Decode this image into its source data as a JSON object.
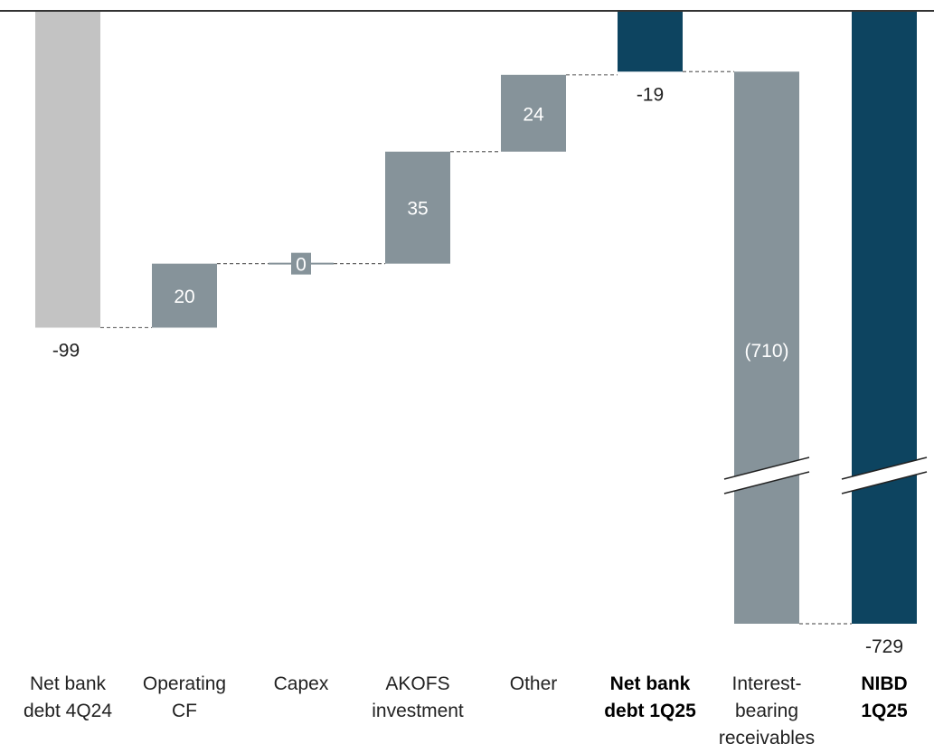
{
  "chart_data": {
    "type": "bar",
    "subtype": "waterfall",
    "title": "",
    "xlabel": "",
    "ylabel": "",
    "axis_break": true,
    "categories": [
      {
        "id": "net-bank-debt-4q24",
        "lines": [
          "Net bank",
          "debt 4Q24"
        ],
        "bold": false
      },
      {
        "id": "operating-cf",
        "lines": [
          "Operating",
          "CF"
        ],
        "bold": false
      },
      {
        "id": "capex",
        "lines": [
          "Capex"
        ],
        "bold": false
      },
      {
        "id": "akofs-investment",
        "lines": [
          "AKOFS",
          "investment"
        ],
        "bold": false
      },
      {
        "id": "other",
        "lines": [
          "Other"
        ],
        "bold": false
      },
      {
        "id": "net-bank-debt-1q25",
        "lines": [
          "Net bank",
          "debt 1Q25"
        ],
        "bold": true
      },
      {
        "id": "interest-bearing-receivables",
        "lines": [
          "Interest-",
          "bearing",
          "receivables"
        ],
        "bold": false
      },
      {
        "id": "nibd-1q25",
        "lines": [
          "NIBD",
          "1Q25"
        ],
        "bold": true
      }
    ],
    "bars": [
      {
        "kind": "total",
        "value": -99,
        "start": 0,
        "end": -99,
        "label": "-99",
        "label_pos": "below",
        "color": "#c3c3c3"
      },
      {
        "kind": "delta",
        "value": 20,
        "start": -99,
        "end": -79,
        "label": "20",
        "label_pos": "inside",
        "color": "#86939a"
      },
      {
        "kind": "delta",
        "value": 0,
        "start": -79,
        "end": -79,
        "label": "0",
        "label_pos": "inside",
        "color": "#86939a"
      },
      {
        "kind": "delta",
        "value": 35,
        "start": -79,
        "end": -44,
        "label": "35",
        "label_pos": "inside",
        "color": "#86939a"
      },
      {
        "kind": "delta",
        "value": 24,
        "start": -44,
        "end": -20,
        "label": "24",
        "label_pos": "inside",
        "color": "#86939a"
      },
      {
        "kind": "total",
        "value": -19,
        "start": 0,
        "end": -19,
        "label": "-19",
        "label_pos": "below",
        "color": "#0d4460"
      },
      {
        "kind": "delta",
        "value": -710,
        "start": -19,
        "end": -729,
        "label": "(710)",
        "label_pos": "inside",
        "color": "#86939a"
      },
      {
        "kind": "total",
        "value": -729,
        "start": 0,
        "end": -729,
        "label": "-729",
        "label_pos": "below",
        "color": "#0d4460"
      }
    ],
    "colors": {
      "opening_total": "#c3c3c3",
      "delta": "#86939a",
      "closing_total": "#0d4460",
      "axis": "#333333",
      "connector": "#666666"
    }
  }
}
